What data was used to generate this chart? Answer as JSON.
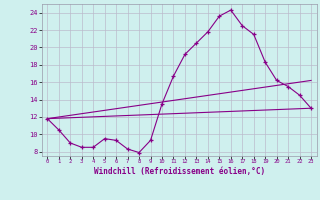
{
  "xlabel": "Windchill (Refroidissement éolien,°C)",
  "bg_color": "#cff0ee",
  "line_color": "#880088",
  "grid_color": "#bbbbcc",
  "xlim": [
    -0.5,
    23.5
  ],
  "ylim": [
    7.5,
    25.0
  ],
  "xticks": [
    0,
    1,
    2,
    3,
    4,
    5,
    6,
    7,
    8,
    9,
    10,
    11,
    12,
    13,
    14,
    15,
    16,
    17,
    18,
    19,
    20,
    21,
    22,
    23
  ],
  "yticks": [
    8,
    10,
    12,
    14,
    16,
    18,
    20,
    22,
    24
  ],
  "line1_x": [
    0,
    1,
    2,
    3,
    4,
    5,
    6,
    7,
    8,
    9,
    10,
    11,
    12,
    13,
    14,
    15,
    16,
    17,
    18,
    19,
    20,
    21,
    22,
    23
  ],
  "line1_y": [
    11.8,
    10.5,
    9.0,
    8.5,
    8.5,
    9.5,
    9.3,
    8.3,
    7.9,
    9.3,
    13.5,
    16.7,
    19.2,
    20.5,
    21.8,
    23.6,
    24.3,
    22.5,
    21.5,
    18.3,
    16.2,
    15.5,
    14.5,
    13.0
  ],
  "line2_x": [
    0,
    23
  ],
  "line2_y": [
    11.8,
    13.0
  ],
  "line3_x": [
    0,
    23
  ],
  "line3_y": [
    11.8,
    16.2
  ],
  "marker": "+"
}
